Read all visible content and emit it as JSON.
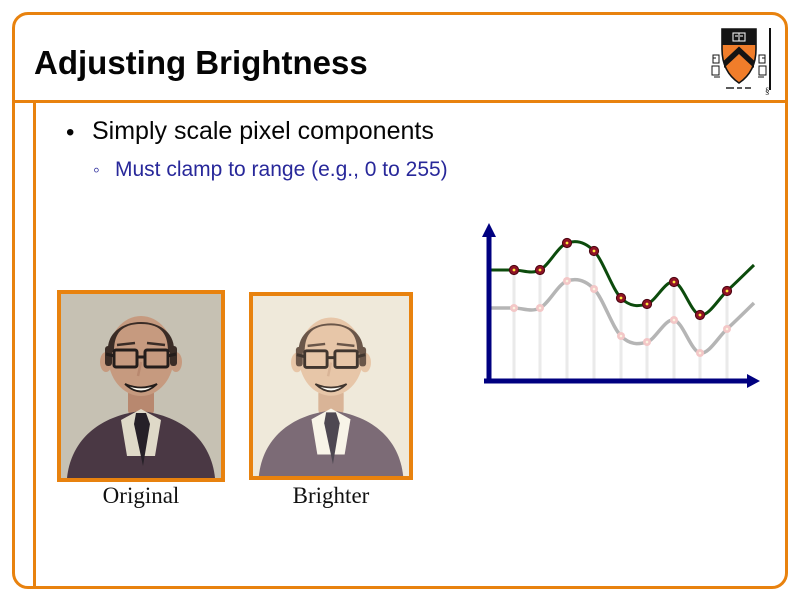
{
  "slide": {
    "title": "Adjusting Brightness",
    "bullet": {
      "glyph": "•",
      "text": "Simply scale pixel components"
    },
    "sub_bullet": {
      "glyph": "◦",
      "text": "Must clamp to range (e.g., 0 to 255)"
    },
    "figures": [
      {
        "label": "Original"
      },
      {
        "label": "Brighter"
      }
    ],
    "logo": "princeton-university-crest",
    "colors": {
      "accent_orange": "#E8820E",
      "bullet_sub_blue": "#28289A",
      "axis_navy": "#000080",
      "curve_green": "#0C4B0C",
      "curve_gray": "#B5B5B5",
      "marker_red": "#8E1325",
      "marker_red_edge": "#4A0310",
      "marker_yellow": "#FFE43C",
      "marker_pink": "#F3C7C7",
      "marker_pink_center": "#FBF3DF",
      "sample_line_gray": "#EAEAEA"
    }
  },
  "chart_data": {
    "type": "line",
    "title": "",
    "xlabel": "",
    "ylabel": "",
    "axis_tick_labels_visible": false,
    "grid": false,
    "legend": "none",
    "description": "Conceptual signal plot: gray curve = original pixel values, dark-green curve = brightened (scaled) values shifted up by a constant 38 units; light vertical sample lines connect the x-axis to the brightened samples.",
    "x": [
      1,
      2,
      3,
      4,
      5,
      6,
      7,
      8,
      9
    ],
    "series": [
      {
        "name": "brighter-signal",
        "color": "#0C4B0C",
        "marker": "dark-red-dot-yellow-center",
        "values": [
          111,
          111,
          138,
          130,
          83,
          77,
          99,
          66,
          90
        ]
      },
      {
        "name": "original-signal",
        "color": "#B5B5B5",
        "marker": "pale-pink-dot",
        "values": [
          73,
          73,
          100,
          92,
          45,
          39,
          61,
          28,
          52
        ]
      }
    ],
    "render": {
      "axis_origin_x": 19,
      "axis_y": 166,
      "x_axis_start": 14,
      "x_axis_end": 290,
      "y_axis_top": 8,
      "curve_x": [
        18,
        44,
        70,
        97,
        124,
        151,
        177,
        204,
        230,
        257,
        284
      ],
      "green_vals": [
        111,
        111,
        111,
        138,
        130,
        83,
        77,
        99,
        66,
        90,
        116
      ],
      "gray_vals": [
        73,
        73,
        73,
        100,
        92,
        45,
        39,
        61,
        28,
        52,
        78
      ],
      "marker_indices": [
        1,
        2,
        3,
        4,
        5,
        6,
        7,
        8,
        9
      ]
    }
  }
}
